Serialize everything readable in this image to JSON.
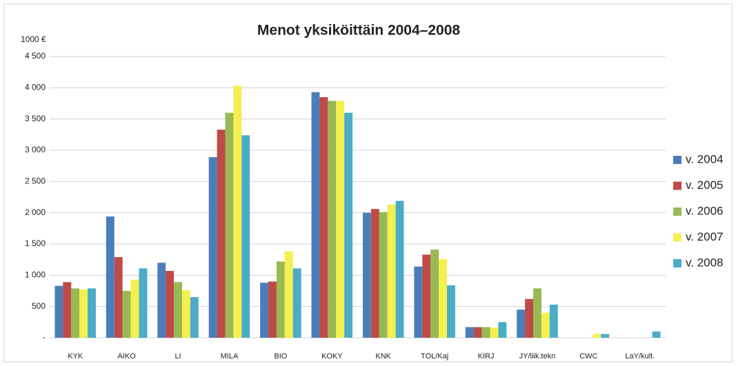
{
  "chart_data": {
    "type": "bar",
    "title": "Menot yksiköittäin 2004–2008",
    "y_unit_label": "1000 €",
    "categories": [
      "KYK",
      "AIKO",
      "LI",
      "MILA",
      "BIO",
      "KOKY",
      "KNK",
      "TOL/Kaj",
      "KIRJ",
      "JY/liik.tekn",
      "CWC",
      "LaY/kult."
    ],
    "series": [
      {
        "name": "v. 2004",
        "color": "#4a7ebb",
        "values": [
          830,
          1940,
          1200,
          2890,
          880,
          3930,
          2000,
          1140,
          170,
          450,
          0,
          0
        ]
      },
      {
        "name": "v. 2005",
        "color": "#be4b48",
        "values": [
          890,
          1290,
          1070,
          3330,
          900,
          3850,
          2060,
          1330,
          170,
          620,
          0,
          0
        ]
      },
      {
        "name": "v. 2006",
        "color": "#98b954",
        "values": [
          790,
          750,
          890,
          3600,
          1220,
          3790,
          2010,
          1410,
          170,
          790,
          0,
          0
        ]
      },
      {
        "name": "v. 2007",
        "color": "#f5ef4f",
        "values": [
          770,
          930,
          760,
          4030,
          1380,
          3790,
          2130,
          1260,
          160,
          400,
          60,
          0
        ]
      },
      {
        "name": "v. 2008",
        "color": "#4bacc6",
        "values": [
          790,
          1110,
          650,
          3240,
          1110,
          3600,
          2190,
          840,
          250,
          530,
          60,
          100
        ]
      }
    ],
    "ylim": [
      0,
      4500
    ],
    "yticks": [
      {
        "value": 0,
        "label": "-"
      },
      500,
      {
        "value": 1000,
        "label": "1 000"
      },
      {
        "value": 1500,
        "label": "1 500"
      },
      {
        "value": 2000,
        "label": "2 000"
      },
      {
        "value": 2500,
        "label": "2 500"
      },
      {
        "value": 3000,
        "label": "3 000"
      },
      {
        "value": 3500,
        "label": "3 500"
      },
      {
        "value": 4000,
        "label": "4 000"
      },
      {
        "value": 4500,
        "label": "4 500"
      }
    ],
    "grid": true,
    "legend": "right"
  }
}
